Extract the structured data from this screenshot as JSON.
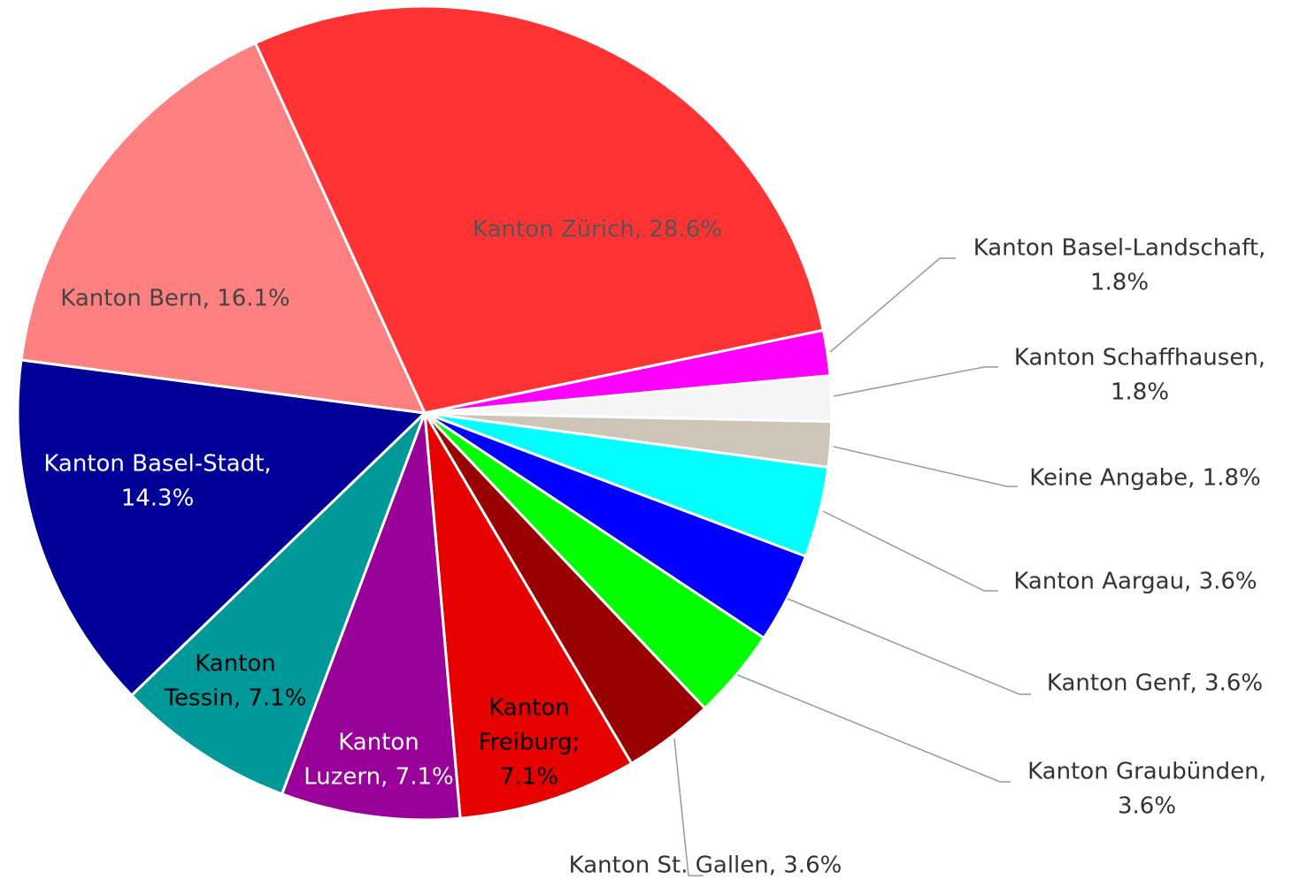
{
  "chart_data": {
    "type": "pie",
    "categories": [
      "Kanton Zürich",
      "Kanton Basel-Landschaft",
      "Kanton Schaffhausen",
      "Keine Angabe",
      "Kanton Aargau",
      "Kanton Genf",
      "Kanton Graubünden",
      "Kanton St. Gallen",
      "Kanton Freiburg",
      "Kanton Luzern",
      "Kanton Tessin",
      "Kanton Basel-Stadt",
      "Kanton Bern"
    ],
    "values": [
      28.6,
      1.8,
      1.8,
      1.8,
      3.6,
      3.6,
      3.6,
      3.6,
      7.1,
      7.1,
      7.1,
      14.3,
      16.1
    ],
    "value_labels": [
      [
        "Kanton Zürich, 28.6%"
      ],
      [
        "Kanton Basel-Landschaft,",
        "1.8%"
      ],
      [
        "Kanton Schaffhausen,",
        "1.8%"
      ],
      [
        "Keine Angabe, 1.8%"
      ],
      [
        "Kanton Aargau, 3.6%"
      ],
      [
        "Kanton Genf, 3.6%"
      ],
      [
        "Kanton Graubünden,",
        "3.6%"
      ],
      [
        "Kanton St. Gallen, 3.6%"
      ],
      [
        "Kanton",
        "Freiburg;",
        "7.1%"
      ],
      [
        "Kanton",
        "Luzern, 7.1%"
      ],
      [
        "Kanton",
        "Tessin, 7.1%"
      ],
      [
        "Kanton Basel-Stadt,",
        "14.3%"
      ],
      [
        "Kanton Bern, 16.1%"
      ]
    ],
    "colors": [
      "#ff3333",
      "#ff00ff",
      "#f5f5f5",
      "#cdc5b8",
      "#00ffff",
      "#0000ff",
      "#00ff00",
      "#990000",
      "#e60000",
      "#990099",
      "#009999",
      "#000099",
      "#ff8080"
    ]
  }
}
